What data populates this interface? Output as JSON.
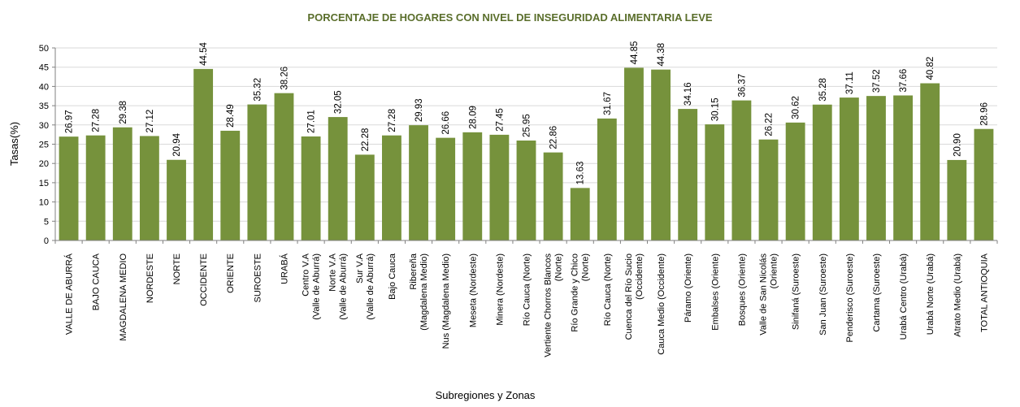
{
  "chart_data": {
    "type": "bar",
    "title": "PORCENTAJE DE HOGARES CON NIVEL DE INSEGURIDAD ALIMENTARIA LEVE",
    "xlabel": "Subregiones y Zonas",
    "ylabel": "Tasas(%)",
    "ylim": [
      0,
      50
    ],
    "yticks": [
      "0",
      "5",
      "10",
      "15",
      "20",
      "25",
      "30",
      "35",
      "40",
      "45",
      "50"
    ],
    "grid": true,
    "bar_color": "#76923c",
    "categories": [
      "VALLE DE ABURRÁ",
      "BAJO CAUCA",
      "MAGDALENA MEDIO",
      "NORDESTE",
      "NORTE",
      "OCCIDENTE",
      "ORIENTE",
      "SUROESTE",
      "URABÁ",
      "Centro V.A (Valle de Aburrá)",
      "Norte V.A (Valle de Aburrá)",
      "Sur V.A (Valle de Aburrá)",
      "Bajo Cauca",
      "Ribereña (Magdalena Medio)",
      "Nus (Magdalena Medio)",
      "Meseta (Nordeste)",
      "Minera (Nordeste)",
      "Río Cauca (Norte)",
      "Vertiente Chorros Blancos (Norte)",
      "Río Grande y Chico (Norte)",
      "Río Cauca (Norte)",
      "Cuenca del Río Sucio (Occidente)",
      "Cauca Medio (Occidente)",
      "Páramo (Oriente)",
      "Embalses (Oriente)",
      "Bosques (Oriente)",
      "Valle de San Nicolás (Oriente)",
      "Sinifaná (Suroeste)",
      "San Juan (Suroeste)",
      "Penderisco (Suroeste)",
      "Cartama (Suroeste)",
      "Urabá Centro (Urabá)",
      "Urabá Norte (Urabá)",
      "Atrato Medio (Urabá)",
      "TOTAL ANTIOQUIA"
    ],
    "values": [
      26.97,
      27.28,
      29.38,
      27.12,
      20.94,
      44.54,
      28.49,
      35.32,
      38.26,
      27.01,
      32.05,
      22.28,
      27.28,
      29.93,
      26.66,
      28.09,
      27.45,
      25.95,
      22.86,
      13.63,
      31.67,
      44.85,
      44.38,
      34.16,
      30.15,
      36.37,
      26.22,
      30.62,
      35.28,
      37.11,
      37.52,
      37.66,
      40.82,
      20.9,
      28.96
    ],
    "value_labels": [
      "26.97",
      "27.28",
      "29.38",
      "27.12",
      "20.94",
      "44.54",
      "28.49",
      "35.32",
      "38.26",
      "27.01",
      "32.05",
      "22.28",
      "27.28",
      "29.93",
      "26.66",
      "28.09",
      "27.45",
      "25.95",
      "22.86",
      "13.63",
      "31.67",
      "44.85",
      "44.38",
      "34.16",
      "30.15",
      "36.37",
      "26.22",
      "30.62",
      "35.28",
      "37.11",
      "37.52",
      "37.66",
      "40.82",
      "20.90",
      "28.96"
    ]
  }
}
